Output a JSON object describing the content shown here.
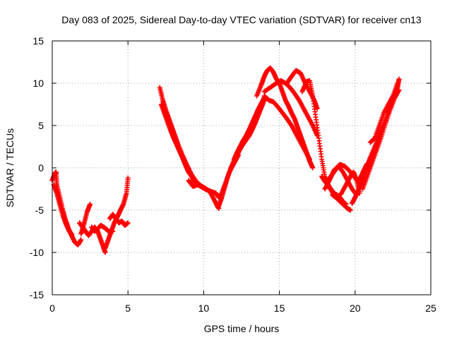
{
  "chart_data": {
    "type": "scatter",
    "title": "Day 083 of 2025, Sidereal Day-to-day VTEC variation (SDTVAR) for receiver cn13",
    "xlabel": "GPS time / hours",
    "ylabel": "SDTVAR / TECUs",
    "xlim": [
      0,
      25
    ],
    "ylim": [
      -15,
      15
    ],
    "xticks": [
      0,
      5,
      10,
      15,
      20,
      25
    ],
    "yticks": [
      -15,
      -10,
      -5,
      0,
      5,
      10,
      15
    ],
    "grid": true,
    "marker": "+",
    "marker_color": "#ff0000",
    "series": [
      {
        "name": "SDTVAR",
        "color": "#ff0000",
        "tracks": [
          {
            "x": [
              0.0,
              0.1,
              0.2,
              0.25,
              0.3,
              0.5,
              0.7,
              0.9,
              1.1,
              1.3,
              1.5,
              1.7,
              1.9
            ],
            "y": [
              -1.5,
              -1.0,
              -0.6,
              -0.5,
              -2.0,
              -3.5,
              -5.0,
              -6.3,
              -7.3,
              -8.1,
              -8.8,
              -9.1,
              -8.5
            ]
          },
          {
            "x": [
              0.1,
              0.3,
              0.5,
              0.7,
              0.9,
              1.1,
              1.3
            ],
            "y": [
              -2.0,
              -3.0,
              -4.3,
              -5.6,
              -6.6,
              -7.4,
              -7.9
            ]
          },
          {
            "x": [
              1.9,
              2.1,
              2.3,
              2.5
            ],
            "y": [
              -7.8,
              -6.6,
              -5.2,
              -4.3
            ]
          },
          {
            "x": [
              1.8,
              2.0,
              2.2,
              2.4,
              2.6,
              2.8,
              3.0,
              3.2,
              3.4,
              3.5
            ],
            "y": [
              -6.5,
              -7.0,
              -7.5,
              -8.0,
              -7.5,
              -7.0,
              -7.5,
              -8.5,
              -9.5,
              -10.0
            ]
          },
          {
            "x": [
              2.6,
              2.8,
              3.0,
              3.2,
              3.4,
              3.6,
              3.8,
              4.0
            ],
            "y": [
              -7.0,
              -7.5,
              -7.2,
              -6.8,
              -7.0,
              -7.3,
              -7.6,
              -7.5
            ]
          },
          {
            "x": [
              3.5,
              3.7,
              3.9,
              4.1,
              4.3,
              4.5,
              4.7,
              4.9,
              5.0
            ],
            "y": [
              -9.5,
              -8.5,
              -7.5,
              -6.5,
              -5.8,
              -5.0,
              -4.3,
              -3.0,
              -1.2
            ]
          },
          {
            "x": [
              3.8,
              4.0,
              4.2,
              4.4,
              4.6,
              4.8,
              5.0
            ],
            "y": [
              -6.0,
              -5.5,
              -6.0,
              -6.5,
              -6.3,
              -6.8,
              -6.5
            ]
          },
          {
            "x": [
              7.1,
              7.3,
              7.5,
              7.7,
              7.9,
              8.1,
              8.3,
              8.6,
              8.9,
              9.2,
              9.5,
              9.8,
              10.1,
              10.4,
              10.7,
              10.9,
              11.0
            ],
            "y": [
              9.5,
              8.0,
              6.8,
              5.8,
              4.8,
              3.8,
              2.8,
              1.5,
              0.3,
              -0.8,
              -1.6,
              -2.1,
              -2.4,
              -2.8,
              -3.8,
              -4.5,
              -4.8
            ]
          },
          {
            "x": [
              7.2,
              7.4,
              7.6,
              7.8,
              8.0,
              8.2,
              8.4,
              8.6,
              8.8,
              9.0,
              9.2,
              9.4
            ],
            "y": [
              7.5,
              6.5,
              5.5,
              4.5,
              3.6,
              2.8,
              2.0,
              1.2,
              0.3,
              -0.5,
              -1.0,
              -1.8
            ]
          },
          {
            "x": [
              9.0,
              9.3,
              9.6,
              9.9,
              10.2,
              10.5,
              10.8,
              11.0,
              11.2,
              11.4,
              11.7,
              12.0,
              12.3
            ],
            "y": [
              -1.5,
              -2.2,
              -2.0,
              -2.3,
              -2.6,
              -2.8,
              -3.0,
              -3.5,
              -3.0,
              -2.0,
              -0.5,
              0.5,
              1.5
            ]
          },
          {
            "x": [
              11.0,
              11.2,
              11.4,
              11.6,
              11.8,
              12.0,
              12.2,
              12.4,
              12.6,
              12.8,
              13.0,
              13.2,
              13.4,
              13.6,
              13.8,
              14.0
            ],
            "y": [
              -4.5,
              -3.5,
              -2.2,
              -1.0,
              0.0,
              0.8,
              1.5,
              2.2,
              2.8,
              3.3,
              3.8,
              4.5,
              5.3,
              6.2,
              7.1,
              8.0
            ]
          },
          {
            "x": [
              12.0,
              12.2,
              12.4,
              12.6,
              12.8,
              13.0,
              13.2,
              13.4,
              13.6,
              13.8,
              14.0
            ],
            "y": [
              1.0,
              1.8,
              2.5,
              3.2,
              3.8,
              4.5,
              5.3,
              6.1,
              6.9,
              7.6,
              8.3
            ]
          },
          {
            "x": [
              13.5,
              13.8,
              14.0,
              14.2,
              14.4,
              14.6,
              14.8,
              15.0,
              15.2,
              15.4,
              15.6,
              15.8,
              16.0,
              16.2,
              16.4,
              16.6,
              16.8,
              17.0,
              17.2
            ],
            "y": [
              8.5,
              9.8,
              10.8,
              11.5,
              11.8,
              11.3,
              10.5,
              10.0,
              9.0,
              8.0,
              7.3,
              6.5,
              5.8,
              4.8,
              3.8,
              2.8,
              1.8,
              0.8,
              0.0
            ]
          },
          {
            "x": [
              14.0,
              14.3,
              14.6,
              14.9,
              15.2,
              15.5,
              15.8,
              16.1,
              16.4,
              16.7,
              17.0
            ],
            "y": [
              8.5,
              8.0,
              7.8,
              7.2,
              6.5,
              5.8,
              5.0,
              4.0,
              3.0,
              2.0,
              1.0
            ]
          },
          {
            "x": [
              14.0,
              14.4,
              14.8,
              15.1,
              15.4,
              15.7,
              16.0,
              16.3,
              16.6,
              16.9,
              17.2,
              17.5
            ],
            "y": [
              9.0,
              9.5,
              10.0,
              10.3,
              10.0,
              9.5,
              8.8,
              8.0,
              7.0,
              6.0,
              5.0,
              3.8
            ]
          },
          {
            "x": [
              15.5,
              15.8,
              16.1,
              16.4,
              16.7,
              17.0,
              17.3,
              17.5
            ],
            "y": [
              10.0,
              10.8,
              11.5,
              11.2,
              10.0,
              9.0,
              8.0,
              7.0
            ]
          },
          {
            "x": [
              16.5,
              16.8,
              17.0,
              17.2,
              17.4,
              17.6,
              17.8,
              18.0,
              18.3,
              18.6,
              18.9,
              19.2,
              19.5,
              19.7
            ],
            "y": [
              9.0,
              10.2,
              10.3,
              8.5,
              6.0,
              3.5,
              1.0,
              -1.0,
              -2.3,
              -3.2,
              -3.8,
              -4.3,
              -4.8,
              -5.0
            ]
          },
          {
            "x": [
              17.8,
              18.0,
              18.2,
              18.4,
              18.6,
              18.8,
              19.0,
              19.2,
              19.4
            ],
            "y": [
              -1.0,
              -1.6,
              -2.0,
              -2.5,
              -3.0,
              -3.2,
              -3.5,
              -4.0,
              -4.3
            ]
          },
          {
            "x": [
              18.0,
              18.3,
              18.6,
              18.9,
              19.2,
              19.5,
              19.8,
              20.1
            ],
            "y": [
              -2.5,
              -1.5,
              -0.3,
              0.2,
              -0.5,
              -1.5,
              -2.5,
              -3.2
            ]
          },
          {
            "x": [
              18.2,
              18.4,
              18.6,
              18.8,
              19.0,
              19.3,
              19.6,
              19.9,
              20.2,
              20.4,
              20.6,
              20.8
            ],
            "y": [
              -1.5,
              -1.0,
              -0.5,
              0.0,
              0.4,
              0.2,
              -0.3,
              -1.0,
              -1.5,
              -1.0,
              -0.2,
              0.5
            ]
          },
          {
            "x": [
              18.5,
              18.8,
              19.1,
              19.4,
              19.7,
              19.9,
              20.1,
              20.3
            ],
            "y": [
              -3.2,
              -3.6,
              -3.0,
              -2.0,
              -1.0,
              -0.5,
              -1.5,
              -3.0
            ]
          },
          {
            "x": [
              19.8,
              20.0,
              20.2,
              20.4,
              20.6,
              20.8,
              21.0,
              21.3,
              21.6,
              21.9,
              22.2,
              22.5,
              22.8,
              22.9
            ],
            "y": [
              -4.2,
              -3.5,
              -2.7,
              -1.8,
              -0.8,
              0.2,
              1.2,
              2.5,
              3.8,
              5.2,
              6.7,
              8.2,
              9.5,
              10.5
            ]
          },
          {
            "x": [
              20.5,
              20.8,
              21.1,
              21.4,
              21.7,
              22.0,
              22.3,
              22.6,
              22.9
            ],
            "y": [
              -2.5,
              -1.0,
              0.5,
              2.0,
              3.5,
              5.2,
              6.8,
              8.2,
              9.2
            ]
          },
          {
            "x": [
              21.0,
              21.3,
              21.6,
              21.9,
              22.2,
              22.5,
              22.8
            ],
            "y": [
              3.0,
              3.5,
              5.0,
              6.5,
              7.5,
              8.5,
              10.0
            ]
          }
        ]
      }
    ]
  }
}
